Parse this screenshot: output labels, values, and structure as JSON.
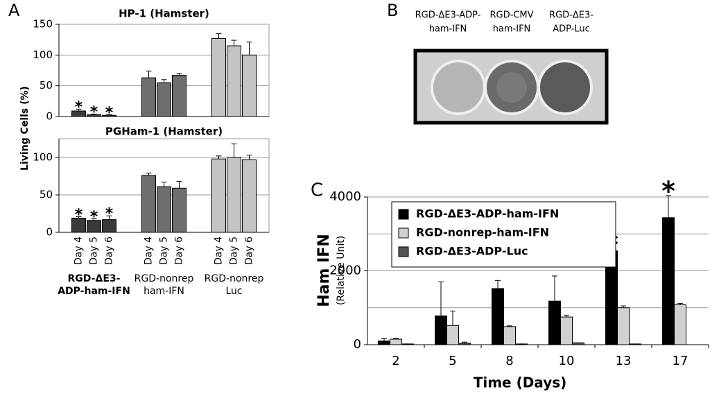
{
  "panel_letters": [
    "A",
    "B",
    "C"
  ],
  "panel_b": {
    "labels": [
      [
        "RGD-ΔE3-ADP-",
        "ham-IFN"
      ],
      [
        "RGD-CMV",
        "ham-IFN"
      ],
      [
        "RGD-ΔE3-",
        "ADP-Luc"
      ]
    ]
  },
  "chart_data": [
    {
      "type": "bar",
      "title": "HP-1 (Hamster)",
      "ylabel": "Living Cells (%)",
      "categories_hidden": true,
      "colors": [
        "#3a3a3a",
        "#6e6e6e",
        "#c4c4c4"
      ],
      "series": [
        {
          "values": [
            9,
            63,
            127
          ],
          "errors": [
            3,
            11,
            8
          ]
        },
        {
          "values": [
            3,
            55,
            115
          ],
          "errors": [
            1,
            5,
            9
          ]
        },
        {
          "values": [
            2,
            67,
            100
          ],
          "errors": [
            1,
            3,
            21
          ]
        }
      ],
      "ylim": [
        0,
        150
      ],
      "yticks": [
        0,
        50,
        100,
        150
      ],
      "grid": true,
      "annotations": [
        {
          "text": "*",
          "category": 0,
          "series": 0
        },
        {
          "text": "*",
          "category": 0,
          "series": 1
        },
        {
          "text": "*",
          "category": 0,
          "series": 2
        }
      ]
    },
    {
      "type": "bar",
      "title": "PGHam-1 (Hamster)",
      "categories": [
        [
          "RGD-ΔE3-",
          "ADP-ham-IFN"
        ],
        [
          "RGD-nonrep",
          "ham-IFN"
        ],
        [
          "RGD-nonrep",
          "Luc"
        ]
      ],
      "highlight_category": 0,
      "colors": [
        "#3a3a3a",
        "#6e6e6e",
        "#c4c4c4"
      ],
      "series": [
        {
          "name": "Day 4",
          "values": [
            19,
            76,
            98
          ],
          "errors": [
            2,
            3,
            4
          ]
        },
        {
          "name": "Day 5",
          "values": [
            16,
            61,
            100
          ],
          "errors": [
            2,
            6,
            18
          ]
        },
        {
          "name": "Day 6",
          "values": [
            17,
            59,
            97
          ],
          "errors": [
            5,
            9,
            6
          ]
        }
      ],
      "ylim": [
        0,
        125
      ],
      "yticks": [
        0,
        50,
        100
      ],
      "grid": true,
      "annotations": [
        {
          "text": "*",
          "category": 0,
          "series": 0
        },
        {
          "text": "*",
          "category": 0,
          "series": 1
        },
        {
          "text": "*",
          "category": 0,
          "series": 2
        }
      ]
    },
    {
      "type": "bar",
      "xlabel": "Time (Days)",
      "ylabel": "Ham IFN",
      "ylabel_sub": "(Relative Unit)",
      "categories": [
        "2",
        "5",
        "8",
        "10",
        "13",
        "17"
      ],
      "series": [
        {
          "name": "RGD-ΔE3-ADP-ham-IFN",
          "color": "#000000",
          "values": [
            100,
            780,
            1520,
            1180,
            2540,
            3440
          ],
          "errors": [
            60,
            920,
            220,
            680,
            50,
            600
          ]
        },
        {
          "name": "RGD-nonrep-ham-IFN",
          "color": "#d0d0d0",
          "values": [
            150,
            520,
            490,
            750,
            1000,
            1080
          ],
          "errors": [
            20,
            390,
            20,
            50,
            50,
            40
          ]
        },
        {
          "name": "RGD-ΔE3-ADP-Luc",
          "color": "#555555",
          "values": [
            20,
            40,
            20,
            50,
            20,
            0
          ],
          "errors": [
            0,
            30,
            0,
            0,
            0,
            0
          ]
        }
      ],
      "ylim": [
        0,
        4000
      ],
      "yticks": [
        0,
        2000,
        4000
      ],
      "minor_gridlines": [
        1000,
        3000
      ],
      "grid": true,
      "legend": "top-left",
      "annotations": [
        {
          "text": "*",
          "category": 4,
          "series": 0
        },
        {
          "text": "*",
          "category": 5,
          "series": 0
        }
      ]
    }
  ]
}
